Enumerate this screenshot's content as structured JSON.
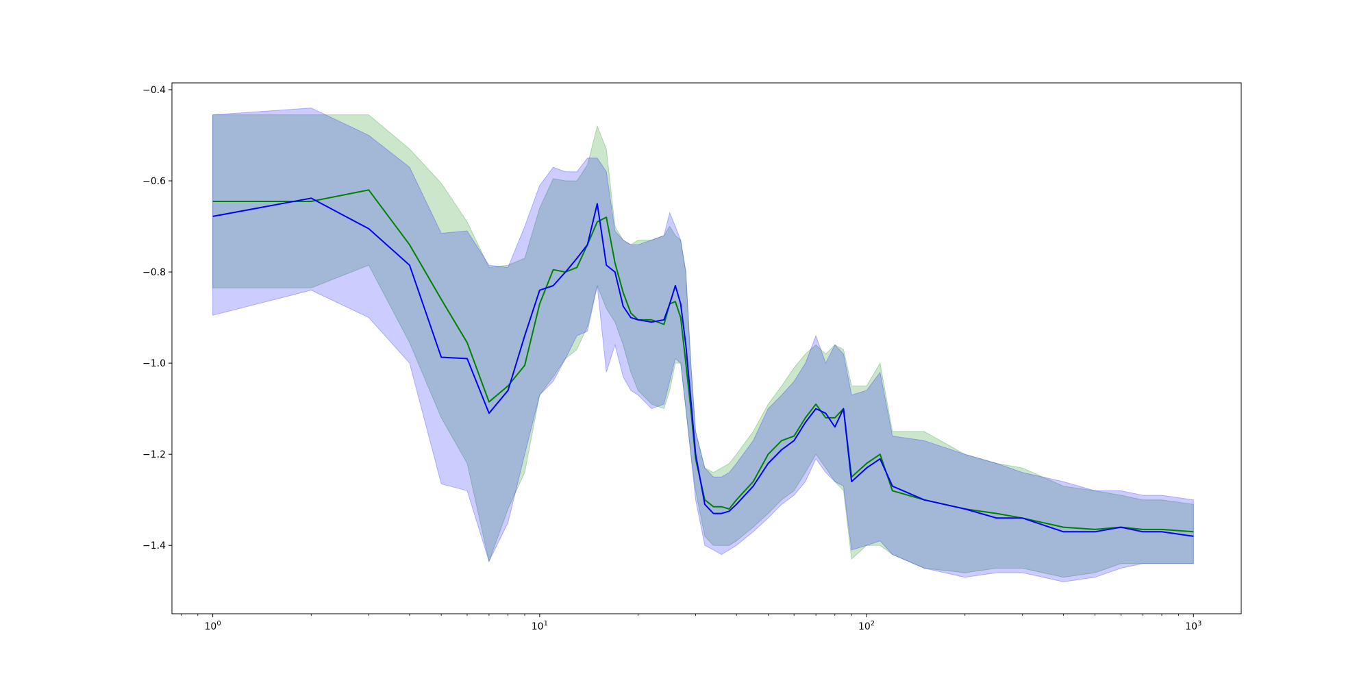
{
  "chart_data": {
    "type": "line",
    "title": "",
    "xlabel": "",
    "ylabel": "",
    "xscale": "log",
    "xlim": [
      0.75,
      1400
    ],
    "ylim": [
      -1.55,
      -0.385
    ],
    "grid": false,
    "legend": "none",
    "x_ticks": [
      {
        "value": 1,
        "base": "10",
        "exp": "0"
      },
      {
        "value": 10,
        "base": "10",
        "exp": "1"
      },
      {
        "value": 100,
        "base": "10",
        "exp": "2"
      },
      {
        "value": 1000,
        "base": "10",
        "exp": "3"
      }
    ],
    "y_ticks": [
      {
        "value": -0.4,
        "label": "−0.4"
      },
      {
        "value": -0.6,
        "label": "−0.6"
      },
      {
        "value": -0.8,
        "label": "−0.8"
      },
      {
        "value": -1.0,
        "label": "−1.0"
      },
      {
        "value": -1.2,
        "label": "−1.2"
      },
      {
        "value": -1.4,
        "label": "−1.4"
      }
    ],
    "series": [
      {
        "color": "#008000",
        "band_color": "#008000",
        "band_opacity": 0.2,
        "x": [
          1,
          2,
          3,
          4,
          5,
          6,
          7,
          8,
          9,
          10,
          11,
          12,
          13,
          14,
          15,
          16,
          17,
          18,
          19,
          20,
          22,
          24,
          25,
          26,
          27,
          28,
          29,
          30,
          32,
          34,
          36,
          38,
          40,
          45,
          50,
          55,
          60,
          65,
          70,
          75,
          80,
          85,
          90,
          100,
          110,
          120,
          150,
          200,
          250,
          300,
          400,
          500,
          600,
          700,
          800,
          1000
        ],
        "mean": [
          -0.645,
          -0.645,
          -0.62,
          -0.74,
          -0.86,
          -0.955,
          -1.085,
          -1.05,
          -1.005,
          -0.87,
          -0.795,
          -0.8,
          -0.79,
          -0.74,
          -0.69,
          -0.68,
          -0.78,
          -0.845,
          -0.89,
          -0.905,
          -0.905,
          -0.915,
          -0.87,
          -0.865,
          -0.9,
          -1.0,
          -1.1,
          -1.21,
          -1.3,
          -1.315,
          -1.315,
          -1.32,
          -1.3,
          -1.26,
          -1.2,
          -1.17,
          -1.16,
          -1.12,
          -1.09,
          -1.12,
          -1.12,
          -1.1,
          -1.25,
          -1.22,
          -1.2,
          -1.28,
          -1.3,
          -1.32,
          -1.33,
          -1.34,
          -1.36,
          -1.365,
          -1.36,
          -1.365,
          -1.365,
          -1.37
        ],
        "upper": [
          -0.455,
          -0.455,
          -0.455,
          -0.53,
          -0.605,
          -0.69,
          -0.79,
          -0.785,
          -0.77,
          -0.66,
          -0.595,
          -0.6,
          -0.6,
          -0.565,
          -0.48,
          -0.53,
          -0.7,
          -0.73,
          -0.74,
          -0.73,
          -0.73,
          -0.72,
          -0.7,
          -0.72,
          -0.73,
          -0.8,
          -1.0,
          -1.15,
          -1.23,
          -1.24,
          -1.23,
          -1.22,
          -1.2,
          -1.15,
          -1.09,
          -1.05,
          -1.01,
          -0.98,
          -0.96,
          -0.98,
          -0.96,
          -0.97,
          -1.05,
          -1.05,
          -1.0,
          -1.15,
          -1.15,
          -1.2,
          -1.22,
          -1.23,
          -1.27,
          -1.28,
          -1.29,
          -1.3,
          -1.3,
          -1.31
        ],
        "lower": [
          -0.835,
          -0.835,
          -0.785,
          -0.955,
          -1.12,
          -1.22,
          -1.435,
          -1.32,
          -1.24,
          -1.07,
          -1.03,
          -0.99,
          -0.97,
          -0.92,
          -0.83,
          -0.88,
          -0.91,
          -0.96,
          -1.02,
          -1.06,
          -1.09,
          -1.1,
          -1.06,
          -1.0,
          -1.0,
          -1.1,
          -1.2,
          -1.28,
          -1.38,
          -1.4,
          -1.4,
          -1.4,
          -1.39,
          -1.36,
          -1.33,
          -1.3,
          -1.28,
          -1.24,
          -1.2,
          -1.23,
          -1.26,
          -1.28,
          -1.43,
          -1.4,
          -1.4,
          -1.42,
          -1.45,
          -1.46,
          -1.45,
          -1.45,
          -1.47,
          -1.46,
          -1.44,
          -1.44,
          -1.44,
          -1.44
        ]
      },
      {
        "color": "#0000ff",
        "band_color": "#0000ff",
        "band_opacity": 0.2,
        "x": [
          1,
          2,
          3,
          4,
          5,
          6,
          7,
          8,
          9,
          10,
          11,
          12,
          13,
          14,
          15,
          16,
          17,
          18,
          19,
          20,
          22,
          24,
          25,
          26,
          27,
          28,
          29,
          30,
          32,
          34,
          36,
          38,
          40,
          45,
          50,
          55,
          60,
          65,
          70,
          75,
          80,
          85,
          90,
          100,
          110,
          120,
          150,
          200,
          250,
          300,
          400,
          500,
          600,
          700,
          800,
          1000
        ],
        "mean": [
          -0.678,
          -0.638,
          -0.705,
          -0.785,
          -0.987,
          -0.99,
          -1.11,
          -1.06,
          -0.94,
          -0.84,
          -0.83,
          -0.8,
          -0.77,
          -0.74,
          -0.65,
          -0.785,
          -0.8,
          -0.875,
          -0.9,
          -0.905,
          -0.91,
          -0.905,
          -0.87,
          -0.83,
          -0.87,
          -0.96,
          -1.08,
          -1.2,
          -1.31,
          -1.33,
          -1.33,
          -1.325,
          -1.31,
          -1.27,
          -1.22,
          -1.19,
          -1.17,
          -1.13,
          -1.1,
          -1.11,
          -1.14,
          -1.1,
          -1.26,
          -1.23,
          -1.21,
          -1.27,
          -1.3,
          -1.32,
          -1.34,
          -1.34,
          -1.37,
          -1.37,
          -1.36,
          -1.37,
          -1.37,
          -1.38
        ],
        "upper": [
          -0.455,
          -0.44,
          -0.5,
          -0.57,
          -0.715,
          -0.71,
          -0.785,
          -0.79,
          -0.7,
          -0.61,
          -0.57,
          -0.58,
          -0.58,
          -0.55,
          -0.55,
          -0.58,
          -0.71,
          -0.73,
          -0.74,
          -0.74,
          -0.73,
          -0.72,
          -0.67,
          -0.7,
          -0.73,
          -0.8,
          -1.0,
          -1.15,
          -1.23,
          -1.25,
          -1.25,
          -1.24,
          -1.22,
          -1.17,
          -1.1,
          -1.07,
          -1.04,
          -1.0,
          -0.94,
          -1.0,
          -0.96,
          -0.98,
          -1.07,
          -1.06,
          -1.02,
          -1.16,
          -1.17,
          -1.2,
          -1.22,
          -1.24,
          -1.26,
          -1.28,
          -1.28,
          -1.29,
          -1.29,
          -1.3
        ],
        "lower": [
          -0.895,
          -0.84,
          -0.9,
          -1.0,
          -1.265,
          -1.28,
          -1.435,
          -1.35,
          -1.2,
          -1.07,
          -1.04,
          -0.99,
          -0.94,
          -0.93,
          -0.83,
          -1.02,
          -0.96,
          -1.03,
          -1.06,
          -1.07,
          -1.1,
          -1.09,
          -1.04,
          -0.99,
          -1.0,
          -1.1,
          -1.2,
          -1.3,
          -1.4,
          -1.41,
          -1.42,
          -1.41,
          -1.4,
          -1.37,
          -1.34,
          -1.31,
          -1.29,
          -1.26,
          -1.21,
          -1.24,
          -1.26,
          -1.27,
          -1.41,
          -1.4,
          -1.39,
          -1.42,
          -1.45,
          -1.47,
          -1.46,
          -1.46,
          -1.48,
          -1.47,
          -1.45,
          -1.44,
          -1.44,
          -1.44
        ]
      }
    ]
  }
}
